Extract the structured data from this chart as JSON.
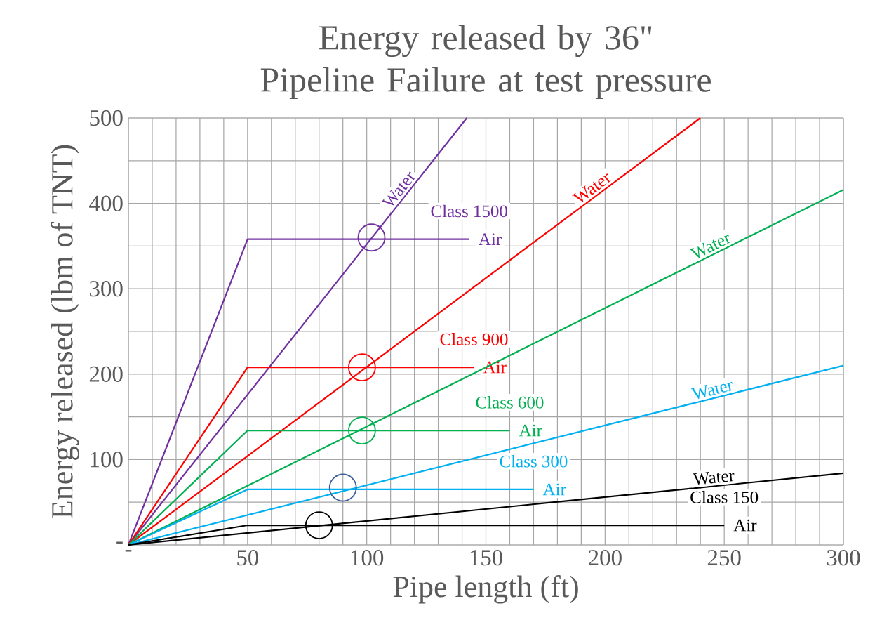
{
  "chart_data": {
    "type": "line",
    "title": "Energy released by 36\" Pipeline Failure at test pressure",
    "xlabel": "Pipe length (ft)",
    "ylabel": "Energy released (lbm of TNT)",
    "xlim": [
      0,
      300
    ],
    "ylim": [
      0,
      500
    ],
    "xticks": [
      {
        "value": 0,
        "label": "-"
      },
      {
        "value": 10,
        "label": null
      },
      {
        "value": 20,
        "label": null
      },
      {
        "value": 30,
        "label": null
      },
      {
        "value": 40,
        "label": null
      },
      50,
      {
        "value": 60,
        "label": null
      },
      {
        "value": 70,
        "label": null
      },
      {
        "value": 80,
        "label": null
      },
      {
        "value": 90,
        "label": null
      },
      100,
      {
        "value": 110,
        "label": null
      },
      {
        "value": 120,
        "label": null
      },
      {
        "value": 130,
        "label": null
      },
      {
        "value": 140,
        "label": null
      },
      150,
      {
        "value": 160,
        "label": null
      },
      {
        "value": 170,
        "label": null
      },
      {
        "value": 180,
        "label": null
      },
      {
        "value": 190,
        "label": null
      },
      200,
      {
        "value": 210,
        "label": null
      },
      {
        "value": 220,
        "label": null
      },
      {
        "value": 230,
        "label": null
      },
      {
        "value": 240,
        "label": null
      },
      250,
      {
        "value": 260,
        "label": null
      },
      {
        "value": 270,
        "label": null
      },
      {
        "value": 280,
        "label": null
      },
      {
        "value": 290,
        "label": null
      },
      300
    ],
    "yticks": [
      {
        "value": 0,
        "label": "-"
      },
      {
        "value": 50,
        "label": null
      },
      100,
      {
        "value": 150,
        "label": null
      },
      200,
      {
        "value": 250,
        "label": null
      },
      300,
      {
        "value": 350,
        "label": null
      },
      400,
      {
        "value": 450,
        "label": null
      },
      500
    ],
    "grid": true,
    "marker": "none",
    "series": [
      {
        "name": "Air",
        "color": "#7030a0",
        "x": [
          0,
          50,
          143
        ],
        "values": [
          0,
          358,
          358
        ]
      },
      {
        "name": "Water",
        "color": "#7030a0",
        "x": [
          0,
          142
        ],
        "values": [
          0,
          500
        ]
      },
      {
        "name": "Air",
        "color": "#ff0000",
        "x": [
          0,
          50,
          145
        ],
        "values": [
          0,
          208,
          208
        ]
      },
      {
        "name": "Water",
        "color": "#ff0000",
        "x": [
          0,
          240
        ],
        "values": [
          0,
          500
        ]
      },
      {
        "name": "Air",
        "color": "#00b050",
        "x": [
          0,
          50,
          160
        ],
        "values": [
          0,
          134,
          134
        ]
      },
      {
        "name": "Water",
        "color": "#00b050",
        "x": [
          0,
          300
        ],
        "values": [
          0,
          416
        ]
      },
      {
        "name": "Air",
        "color": "#00b0f0",
        "x": [
          0,
          50,
          170
        ],
        "values": [
          0,
          65,
          65
        ]
      },
      {
        "name": "Water",
        "color": "#00b0f0",
        "x": [
          0,
          300
        ],
        "values": [
          0,
          210
        ]
      },
      {
        "name": "Air",
        "color": "#000000",
        "x": [
          0,
          50,
          250
        ],
        "values": [
          0,
          23,
          23
        ]
      },
      {
        "name": "Water",
        "color": "#000000",
        "x": [
          0,
          300
        ],
        "values": [
          0,
          84
        ]
      },
      {
        "type": "scatter",
        "marker": "circle",
        "x": [
          102,
          98,
          98,
          90,
          80
        ],
        "values": [
          360,
          208,
          134,
          67,
          23
        ],
        "colors": [
          "#7030a0",
          "#ff0000",
          "#00b050",
          "#3a5f9a",
          "#000000"
        ]
      }
    ],
    "annotations": [
      "Class 1500",
      "Class 900",
      "Class 600",
      "Class 300",
      "Class 150"
    ]
  }
}
